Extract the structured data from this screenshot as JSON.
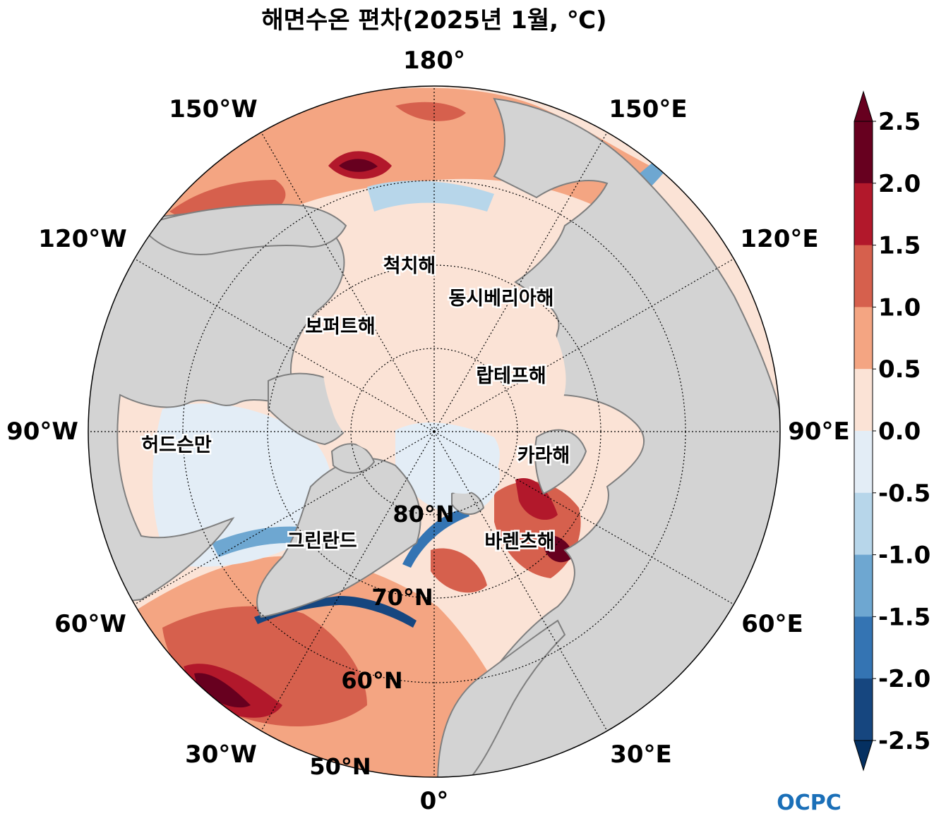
{
  "title": "해면수온 편차(2025년 1월, ℃)",
  "longitude_labels": [
    "180°",
    "150°E",
    "120°E",
    "90°E",
    "60°E",
    "30°E",
    "0°",
    "30°W",
    "60°W",
    "90°W",
    "120°W",
    "150°W"
  ],
  "latitude_labels": [
    "80°N",
    "70°N",
    "60°N",
    "50°N"
  ],
  "sea_labels": {
    "chukchi": "척치해",
    "east_siberian": "동시베리아해",
    "beaufort": "보퍼트해",
    "laptev": "랍테프해",
    "hudson": "허드슨만",
    "kara": "카라해",
    "greenland": "그린란드",
    "barents": "바렌츠해"
  },
  "colorbar": {
    "ticks": [
      "2.5",
      "2.0",
      "1.5",
      "1.0",
      "0.5",
      "0.0",
      "-0.5",
      "-1.0",
      "-1.5",
      "-2.0",
      "-2.5"
    ],
    "colors": [
      "#67001f",
      "#b2182b",
      "#d6604d",
      "#f4a582",
      "#fbe3d6",
      "#e3edf6",
      "#b7d6ea",
      "#6ea7d1",
      "#3474b3",
      "#16467f"
    ],
    "extend_top_color": "#67001f",
    "extend_bottom_color": "#053061"
  },
  "colors": {
    "land": "#d3d3d3",
    "coastline": "#7f7f7f",
    "grid": "#000000"
  },
  "logo": "OCPC"
}
